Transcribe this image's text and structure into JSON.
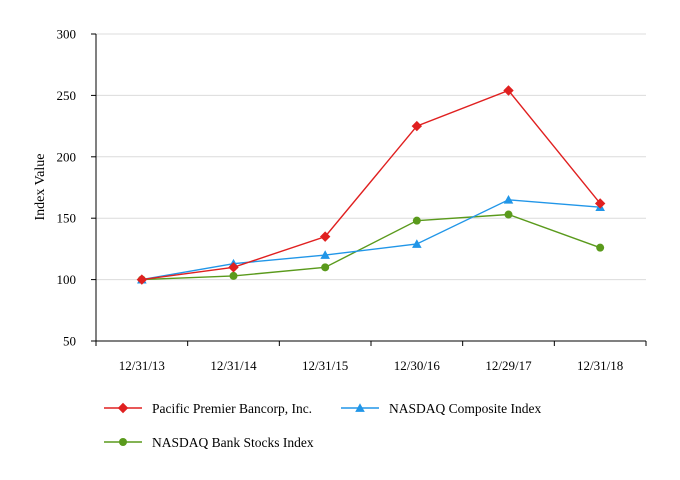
{
  "chart_data": {
    "type": "line",
    "title": "",
    "xlabel": "",
    "ylabel": "Index Value",
    "ylim": [
      50,
      300
    ],
    "yticks": [
      50,
      100,
      150,
      200,
      250,
      300
    ],
    "grid": "horizontal",
    "legend_position": "bottom",
    "categories": [
      "12/31/13",
      "12/31/14",
      "12/31/15",
      "12/30/16",
      "12/29/17",
      "12/31/18"
    ],
    "series": [
      {
        "name": "Pacific Premier Bancorp, Inc.",
        "color": "#e02020",
        "marker": "diamond",
        "values": [
          100,
          110,
          135,
          225,
          254,
          162
        ]
      },
      {
        "name": "NASDAQ Composite Index",
        "color": "#2196e8",
        "marker": "triangle",
        "values": [
          100,
          113,
          120,
          129,
          165,
          159
        ]
      },
      {
        "name": "NASDAQ Bank Stocks Index",
        "color": "#5a9a1c",
        "marker": "circle",
        "values": [
          100,
          103,
          110,
          148,
          153,
          126
        ]
      }
    ]
  }
}
